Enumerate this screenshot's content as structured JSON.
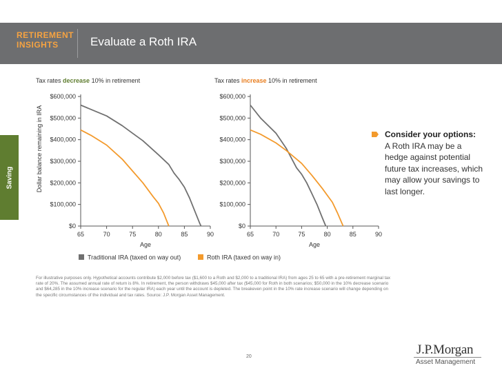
{
  "header": {
    "brand_line1": "RETIREMENT",
    "brand_line2": "INSIGHTS",
    "title": "Evaluate a Roth IRA"
  },
  "side_tab": "Saving",
  "options": {
    "title": "Consider your options:",
    "body": "A Roth IRA may be a hedge against potential future tax increases, which may allow your savings to last longer."
  },
  "footnote": "For illustrative purposes only. Hypothetical accounts contribute $2,000 before tax ($1,600 to a Roth and $2,000 to a traditional IRA) from ages 25 to 65 with a pre-retirement marginal tax rate of 20%. The assumed annual rate of return is 8%. In retirement, the person withdraws $45,000 after tax ($45,000 for Roth in both scenarios; $50,000 in the 10% decrease scenario and $64,285 in the 10% increase scenario for the regular IRA) each year until the account is depleted. The breakeven point in the 10% rate increase scenario will change depending on the specific circumstances of the individual and tax rates. Source: J.P. Morgan Asset Management.",
  "page_number": "20",
  "logo": {
    "name": "J.P.Morgan",
    "sub": "Asset Management"
  },
  "colors": {
    "traditional": "#707070",
    "roth": "#f39a2c",
    "header": "#6d6e70",
    "accent": "#f6a341",
    "green": "#5f7d30",
    "highlight_decrease": "#5f7d30",
    "highlight_increase": "#e87d1e"
  },
  "chart_data": [
    {
      "type": "line",
      "title_parts": [
        "Tax rates ",
        "decrease",
        " 10% in retirement"
      ],
      "xlabel": "Age",
      "ylabel": "Dollar balance remaining in IRA",
      "xlim": [
        65,
        90
      ],
      "ylim": [
        0,
        600000
      ],
      "x_ticks": [
        "65",
        "70",
        "75",
        "80",
        "85",
        "90"
      ],
      "y_ticks": [
        "$0",
        "$100,000",
        "$200,000",
        "$300,000",
        "$400,000",
        "$500,000",
        "$600,000"
      ],
      "series": [
        {
          "name": "Traditional IRA (taxed on way out)",
          "points": [
            [
              65,
              560000
            ],
            [
              67,
              540000
            ],
            [
              70,
              510000
            ],
            [
              73,
              465000
            ],
            [
              75,
              430000
            ],
            [
              77,
              395000
            ],
            [
              80,
              330000
            ],
            [
              82,
              285000
            ],
            [
              83,
              245000
            ],
            [
              84,
              215000
            ],
            [
              85,
              180000
            ],
            [
              86,
              130000
            ],
            [
              87,
              70000
            ],
            [
              88,
              10000
            ],
            [
              88.2,
              0
            ]
          ]
        },
        {
          "name": "Roth IRA (taxed on way in)",
          "points": [
            [
              65,
              445000
            ],
            [
              67,
              420000
            ],
            [
              70,
              375000
            ],
            [
              73,
              310000
            ],
            [
              75,
              255000
            ],
            [
              77,
              200000
            ],
            [
              79,
              135000
            ],
            [
              80,
              105000
            ],
            [
              81,
              60000
            ],
            [
              82,
              0
            ]
          ]
        }
      ]
    },
    {
      "type": "line",
      "title_parts": [
        "Tax rates ",
        "increase",
        " 10% in retirement"
      ],
      "xlabel": "Age",
      "ylabel": "",
      "xlim": [
        65,
        90
      ],
      "ylim": [
        0,
        600000
      ],
      "x_ticks": [
        "65",
        "70",
        "75",
        "80",
        "85",
        "90"
      ],
      "y_ticks": [
        "$0",
        "$100,000",
        "$200,000",
        "$300,000",
        "$400,000",
        "$500,000",
        "$600,000"
      ],
      "series": [
        {
          "name": "Traditional IRA (taxed on way out)",
          "points": [
            [
              65,
              560000
            ],
            [
              67,
              500000
            ],
            [
              70,
              430000
            ],
            [
              72,
              360000
            ],
            [
              74,
              270000
            ],
            [
              75,
              240000
            ],
            [
              76,
              200000
            ],
            [
              77,
              150000
            ],
            [
              78,
              100000
            ],
            [
              79,
              40000
            ],
            [
              79.7,
              0
            ]
          ]
        },
        {
          "name": "Roth IRA (taxed on way in)",
          "points": [
            [
              65,
              445000
            ],
            [
              67,
              425000
            ],
            [
              70,
              385000
            ],
            [
              72,
              350000
            ],
            [
              75,
              290000
            ],
            [
              77,
              235000
            ],
            [
              79,
              175000
            ],
            [
              81,
              110000
            ],
            [
              82,
              60000
            ],
            [
              83,
              5000
            ],
            [
              83.1,
              0
            ]
          ]
        }
      ]
    }
  ],
  "legend": [
    {
      "label": "Traditional IRA (taxed on way out)",
      "color": "#707070"
    },
    {
      "label": "Roth IRA (taxed on way in)",
      "color": "#f39a2c"
    }
  ]
}
